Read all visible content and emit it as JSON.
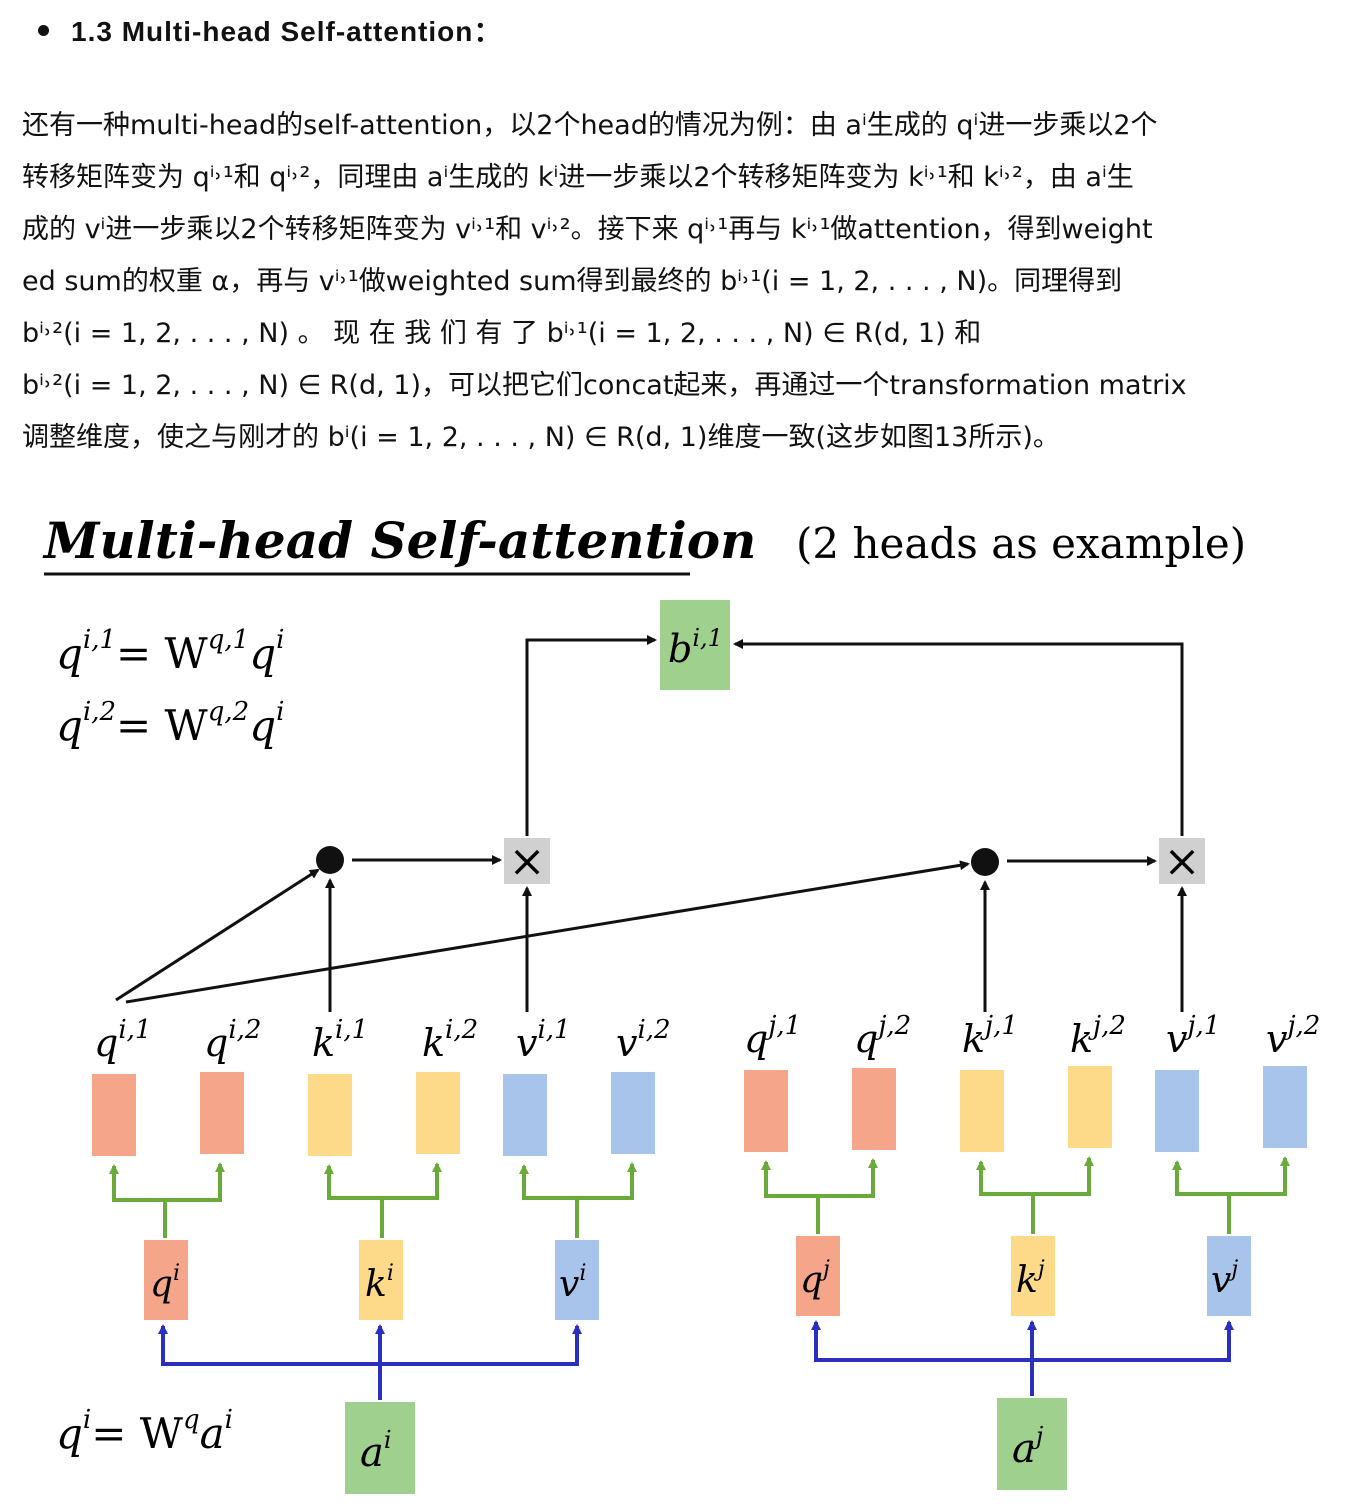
{
  "heading": "1.3 Multi-head Self-attention：",
  "paragraph": [
    "还有一种multi-head的self-attention，以2个head的情况为例：由 aⁱ生成的 qⁱ进一步乘以2个",
    "转移矩阵变为 qⁱ˒¹和 qⁱ˒²，同理由 aⁱ生成的 kⁱ进一步乘以2个转移矩阵变为 kⁱ˒¹和 kⁱ˒²，由 aⁱ生",
    "成的 vⁱ进一步乘以2个转移矩阵变为 vⁱ˒¹和 vⁱ˒²。接下来 qⁱ˒¹再与 kⁱ˒¹做attention，得到weight",
    "ed sum的权重 α，再与 vⁱ˒¹做weighted sum得到最终的 bⁱ˒¹(i = 1, 2, . . . , N)。同理得到",
    "bⁱ˒²(i = 1, 2, . . . , N)  。 现 在 我 们 有 了   bⁱ˒¹(i = 1, 2, . . . , N) ∈ R(d, 1)  和",
    "bⁱ˒²(i = 1, 2, . . . , N) ∈ R(d, 1)，可以把它们concat起来，再通过一个transformation matrix",
    "调整维度，使之与刚才的 bⁱ(i = 1, 2, . . . , N) ∈ R(d, 1)维度一致(这步如图13所示)。"
  ],
  "figure": {
    "title": "Multi-head Self-attention",
    "subtitle": "(2 heads as example)",
    "equations": [
      "q",
      "i,1",
      "= W",
      "q,1",
      "q",
      "i",
      "q",
      "i,2",
      "= W",
      "q,2",
      "q",
      "i"
    ],
    "eq_bottom": [
      "q",
      "i",
      "= W",
      "q",
      "a",
      "i"
    ],
    "output": {
      "base": "b",
      "sup": "i,1"
    },
    "multiply_symbol": "×",
    "vector_labels": [
      {
        "base": "q",
        "sup": "i,1"
      },
      {
        "base": "q",
        "sup": "i,2"
      },
      {
        "base": "k",
        "sup": "i,1"
      },
      {
        "base": "k",
        "sup": "i,2"
      },
      {
        "base": "v",
        "sup": "i,1"
      },
      {
        "base": "v",
        "sup": "i,2"
      },
      {
        "base": "q",
        "sup": "j,1"
      },
      {
        "base": "q",
        "sup": "j,2"
      },
      {
        "base": "k",
        "sup": "j,1"
      },
      {
        "base": "k",
        "sup": "j,2"
      },
      {
        "base": "v",
        "sup": "j,1"
      },
      {
        "base": "v",
        "sup": "j,2"
      }
    ],
    "mid_labels": [
      {
        "base": "q",
        "sup": "i"
      },
      {
        "base": "k",
        "sup": "i"
      },
      {
        "base": "v",
        "sup": "i"
      },
      {
        "base": "q",
        "sup": "j"
      },
      {
        "base": "k",
        "sup": "j"
      },
      {
        "base": "v",
        "sup": "j"
      }
    ],
    "inputs": [
      {
        "base": "a",
        "sup": "i"
      },
      {
        "base": "a",
        "sup": "j"
      }
    ],
    "colors": {
      "q": "#f4a58a",
      "k": "#fdd98a",
      "v": "#a8c4ea",
      "b": "#9fd08e",
      "op": "#d0d0d0",
      "green_line": "#6aaa3a",
      "blue_line": "#2a2fc0"
    }
  }
}
